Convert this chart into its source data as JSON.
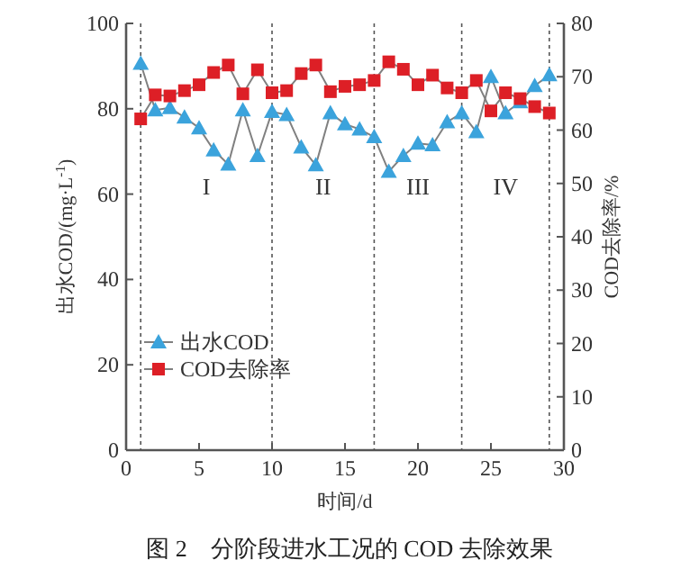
{
  "chart_data": {
    "type": "line",
    "xlabel": "时间/d",
    "ylabel": "出水COD/(mg·L$^{-1}$)",
    "y2label": "COD去除率/%",
    "x": [
      1,
      2,
      3,
      4,
      5,
      6,
      7,
      8,
      9,
      10,
      11,
      12,
      13,
      14,
      15,
      16,
      17,
      18,
      19,
      20,
      21,
      22,
      23,
      24,
      25,
      26,
      27,
      28,
      29
    ],
    "series": [
      {
        "name": "出水COD",
        "color": "#3ba3dc",
        "marker": "triangle",
        "values": [
          90.6,
          79.7,
          80.2,
          78,
          75.5,
          70.3,
          67,
          79.7,
          69,
          79.3,
          78.6,
          71,
          66.8,
          79,
          76.4,
          75.2,
          73.4,
          65.3,
          69,
          71.9,
          71.5,
          76.9,
          79,
          74.6,
          87.5,
          79,
          81.6,
          85.4,
          87.9
        ]
      },
      {
        "name": "COD去除率",
        "color": "#dd1f26",
        "marker": "square",
        "axis": "y2",
        "values": [
          62.1,
          66.6,
          66.4,
          67.4,
          68.5,
          70.8,
          72.2,
          66.8,
          71.3,
          67,
          67.4,
          70.6,
          72.2,
          67.2,
          68.2,
          68.5,
          69.3,
          72.8,
          71.4,
          68.5,
          70.3,
          67.9,
          67,
          69.3,
          63.6,
          67,
          65.9,
          64.4,
          63.2
        ]
      }
    ],
    "xlim": [
      0,
      30
    ],
    "xticks": [
      0,
      5,
      10,
      15,
      20,
      25,
      30
    ],
    "ylim": [
      0,
      100
    ],
    "yticks": [
      0,
      20,
      40,
      60,
      80,
      100
    ],
    "y2lim": [
      0,
      80
    ],
    "y2ticks": [
      0,
      10,
      20,
      30,
      40,
      50,
      60,
      70,
      80
    ],
    "ref_lines": [
      {
        "axis": "x",
        "value": 1,
        "line_style": "dotted"
      },
      {
        "axis": "x",
        "value": 10,
        "line_style": "dotted"
      },
      {
        "axis": "x",
        "value": 17,
        "line_style": "dotted"
      },
      {
        "axis": "x",
        "value": 23,
        "line_style": "dotted"
      },
      {
        "axis": "x",
        "value": 29,
        "line_style": "dotted"
      }
    ],
    "annotations": [
      "I",
      "II",
      "III",
      "IV",
      "图 2　分阶段进水工况的 COD 去除效果"
    ],
    "legend": "bottom left",
    "grid": false
  }
}
